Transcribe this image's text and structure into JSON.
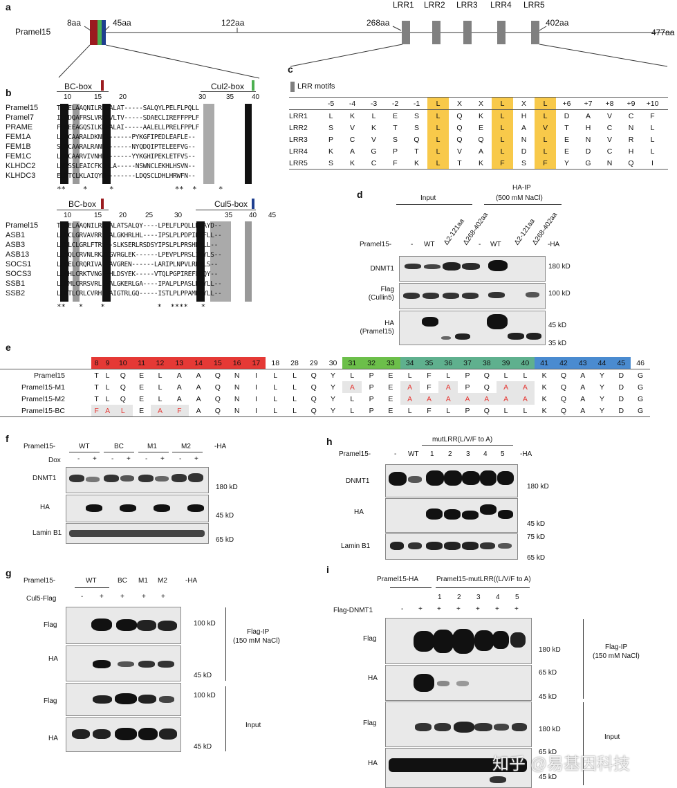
{
  "panels": {
    "a": "a",
    "b": "b",
    "c": "c",
    "d": "d",
    "e": "e",
    "f": "f",
    "g": "g",
    "h": "h",
    "i": "i"
  },
  "colors": {
    "red": "#9b1b1f",
    "green": "#4caf50",
    "blue": "#1f3f8f",
    "yellow": "#f8c94a",
    "grey": "#808080",
    "pink": "#f4d0cc"
  },
  "a": {
    "protein": "Pramel15",
    "positions": [
      "8aa",
      "45aa",
      "122aa",
      "268aa",
      "402aa",
      "477aa"
    ],
    "lrr": [
      "LRR1",
      "LRR2",
      "LRR3",
      "LRR4",
      "LRR5"
    ]
  },
  "b": {
    "top": {
      "bc": "BC-box",
      "cul": "Cul2-box",
      "ticks": [
        "10",
        "15",
        "20",
        "30",
        "35",
        "40"
      ],
      "rows": [
        [
          "Pramel15",
          "TLQELAAQNILRNEALAT-----SALQYLPELFLPQLL"
        ],
        [
          "Pramel7",
          "ILQDQAFRSLVRNEVLTV-----SDAECLIREFFPPLF"
        ],
        [
          "PRAME",
          "FLKEEAGQSILKDEALAI-----AALELLPRELFPPLF"
        ],
        [
          "FEM1A",
          "LLQCAARALDKNKI------PYKGFIPEDLEAFLE--"
        ],
        [
          "FEM1B",
          "SLKCAARALRANDI------NYQDQIPTELEEFVG--"
        ],
        [
          "FEM1C",
          "LLQCAARVIVNHRI------YYKGHIPEKLETFVS--"
        ],
        [
          "KLHDC2",
          "LVRSSLEAICFKEMLA-----NSWNCLEKHLHSVN--"
        ],
        [
          "KLHDC3",
          "ELKTCLKLAIQYN--------LDQSCLDHLHRWFN--"
        ]
      ],
      "stars": "**    *     *              **  *     *"
    },
    "bottom": {
      "bc": "BC-box",
      "cul": "Cul5-box",
      "ticks": [
        "10",
        "15",
        "20",
        "25",
        "30",
        "35",
        "40",
        "45"
      ],
      "rows": [
        [
          "Pramel15",
          "TLQELAAQNILRNEALATSALQY----LPELFLPQLLKQAYD--"
        ],
        [
          "ASB1",
          "LLLCLGRVAVRR--ALGKHRLHL----IPSLPLPDPIKKFLL--"
        ],
        [
          "ASB3",
          "LTHLCLGRLFTRS--SLKSERLRSDSYIPSLPLPRSHNYLL--"
        ],
        [
          "ASB13",
          "LLSQLCRVNLRKATGVRGLEK------LPEVPLPRSLIDYLS--"
        ],
        [
          "SOCS1",
          "LLQELCRQRIVA--AVGREN------LARIPLNPVLRDYLS--"
        ],
        [
          "SOCS3",
          "LLQHLCRKTVNG--HLDSYEK-----VTQLPGPIREFLDQY--"
        ],
        [
          "SSB1",
          "LLHMLCRRSVRL--ALGKERLGA----IPALPLPASLKAYLL--"
        ],
        [
          "SSB2",
          "LLKTLCRLCVRH--AIGTRLGQ-----ISTLPLPPAMKRYLL--"
        ]
      ],
      "stars": "**   *    *            *  ****   *"
    }
  },
  "c": {
    "legend": "LRR motifs",
    "header": [
      "-5",
      "-4",
      "-3",
      "-2",
      "-1",
      "L",
      "X",
      "X",
      "L",
      "X",
      "L",
      "+6",
      "+7",
      "+8",
      "+9",
      "+10"
    ],
    "rows": [
      [
        "LRR1",
        "L",
        "K",
        "L",
        "E",
        "S",
        "L",
        "Q",
        "K",
        "L",
        "H",
        "L",
        "D",
        "A",
        "V",
        "C",
        "F"
      ],
      [
        "LRR2",
        "S",
        "V",
        "K",
        "T",
        "S",
        "L",
        "Q",
        "E",
        "L",
        "A",
        "V",
        "T",
        "H",
        "C",
        "N",
        "L"
      ],
      [
        "LRR3",
        "P",
        "C",
        "V",
        "S",
        "Q",
        "L",
        "Q",
        "Q",
        "L",
        "N",
        "L",
        "E",
        "N",
        "V",
        "R",
        "L"
      ],
      [
        "LRR4",
        "K",
        "A",
        "G",
        "P",
        "T",
        "L",
        "V",
        "A",
        "L",
        "D",
        "L",
        "E",
        "D",
        "C",
        "H",
        "L"
      ],
      [
        "LRR5",
        "S",
        "K",
        "C",
        "F",
        "K",
        "L",
        "T",
        "K",
        "F",
        "S",
        "F",
        "Y",
        "G",
        "N",
        "Q",
        "I"
      ]
    ]
  },
  "d": {
    "input": "Input",
    "hair": "HA-IP",
    "hair2": "(500 mM NaCl)",
    "pramel": "Pramel15-",
    "lanes": [
      "-",
      "WT",
      "Δ2-121aa",
      "Δ268-402aa",
      "-",
      "WT",
      "Δ2-121aa",
      "Δ268-402aa"
    ],
    "ha": "-HA",
    "rows": [
      "DNMT1",
      "Flag",
      "(Cullin5)",
      "HA",
      "(Pramel15)"
    ],
    "mw": [
      "180 kD",
      "100 kD",
      "45 kD",
      "35 kD"
    ]
  },
  "e": {
    "header": [
      "8",
      "9",
      "10",
      "11",
      "12",
      "13",
      "14",
      "15",
      "16",
      "17",
      "18",
      "28",
      "29",
      "30",
      "31",
      "32",
      "33",
      "34",
      "35",
      "36",
      "37",
      "38",
      "39",
      "40",
      "41",
      "42",
      "43",
      "44",
      "45",
      "46"
    ],
    "rows": [
      [
        "Pramel15",
        "T",
        "L",
        "Q",
        "E",
        "L",
        "A",
        "A",
        "Q",
        "N",
        "I",
        "L",
        "L",
        "Q",
        "Y",
        "L",
        "P",
        "E",
        "L",
        "F",
        "L",
        "P",
        "Q",
        "L",
        "L",
        "K",
        "Q",
        "A",
        "Y",
        "D",
        "G"
      ],
      [
        "Pramel15-M1",
        "T",
        "L",
        "Q",
        "E",
        "L",
        "A",
        "A",
        "Q",
        "N",
        "I",
        "L",
        "L",
        "Q",
        "Y",
        "A",
        "P",
        "E",
        "A",
        "F",
        "A",
        "P",
        "Q",
        "A",
        "A",
        "K",
        "Q",
        "A",
        "Y",
        "D",
        "G"
      ],
      [
        "Pramel15-M2",
        "T",
        "L",
        "Q",
        "E",
        "L",
        "A",
        "A",
        "Q",
        "N",
        "I",
        "L",
        "L",
        "Q",
        "Y",
        "L",
        "P",
        "E",
        "A",
        "A",
        "A",
        "A",
        "A",
        "A",
        "A",
        "K",
        "Q",
        "A",
        "Y",
        "D",
        "G"
      ],
      [
        "Pramel15-BC",
        "F",
        "A",
        "L",
        "E",
        "A",
        "F",
        "A",
        "Q",
        "N",
        "I",
        "L",
        "L",
        "Q",
        "Y",
        "L",
        "P",
        "E",
        "L",
        "F",
        "L",
        "P",
        "Q",
        "L",
        "L",
        "K",
        "Q",
        "A",
        "Y",
        "D",
        "G"
      ]
    ]
  },
  "f": {
    "pramel": "Pramel15-",
    "groups": [
      "WT",
      "BC",
      "M1",
      "M2"
    ],
    "ha": "-HA",
    "dox": "Dox",
    "signs": [
      "-",
      "+",
      "-",
      "+",
      "-",
      "+",
      "-",
      "+"
    ],
    "rows": [
      "DNMT1",
      "HA",
      "Lamin B1"
    ],
    "mw": [
      "180 kD",
      "45 kD",
      "65 kD"
    ]
  },
  "g": {
    "pramel": "Pramel15-",
    "groups": [
      "WT",
      "BC",
      "M1",
      "M2"
    ],
    "ha": "-HA",
    "cul5": "Cul5-Flag",
    "signs": [
      "-",
      "+",
      "+",
      "+",
      "+"
    ],
    "rows": [
      "Flag",
      "HA",
      "Flag",
      "HA"
    ],
    "mw": [
      "100 kD",
      "45 kD",
      "100 kD",
      "45 kD"
    ],
    "ip": "Flag-IP",
    "ip2": "(150 mM NaCl)",
    "input": "Input"
  },
  "h": {
    "pramel": "Pramel15-",
    "mut": "mutLRR(L/V/F to A)",
    "lanes": [
      "-",
      "WT",
      "1",
      "2",
      "3",
      "4",
      "5"
    ],
    "ha": "-HA",
    "rows": [
      "DNMT1",
      "HA",
      "Lamin B1"
    ],
    "mw": [
      "180 kD",
      "45 kD",
      "75 kD",
      "65 kD"
    ]
  },
  "i": {
    "g1": "Pramel15-HA",
    "g2": "Pramel15-mutLRR((L/V/F to A)",
    "nums": [
      "1",
      "2",
      "3",
      "4",
      "5"
    ],
    "flagdnmt": "Flag-DNMT1",
    "signs": [
      "-",
      "+",
      "+",
      "+",
      "+",
      "+",
      "+"
    ],
    "rows": [
      "Flag",
      "HA",
      "Flag",
      "HA"
    ],
    "mw": [
      "180 kD",
      "65 kD",
      "45 kD",
      "180 kD",
      "65 kD",
      "45 kD"
    ],
    "ip": "Flag-IP",
    "ip2": "(150 mM NaCl)",
    "input": "Input"
  },
  "watermark": "知乎 @易基因科技"
}
